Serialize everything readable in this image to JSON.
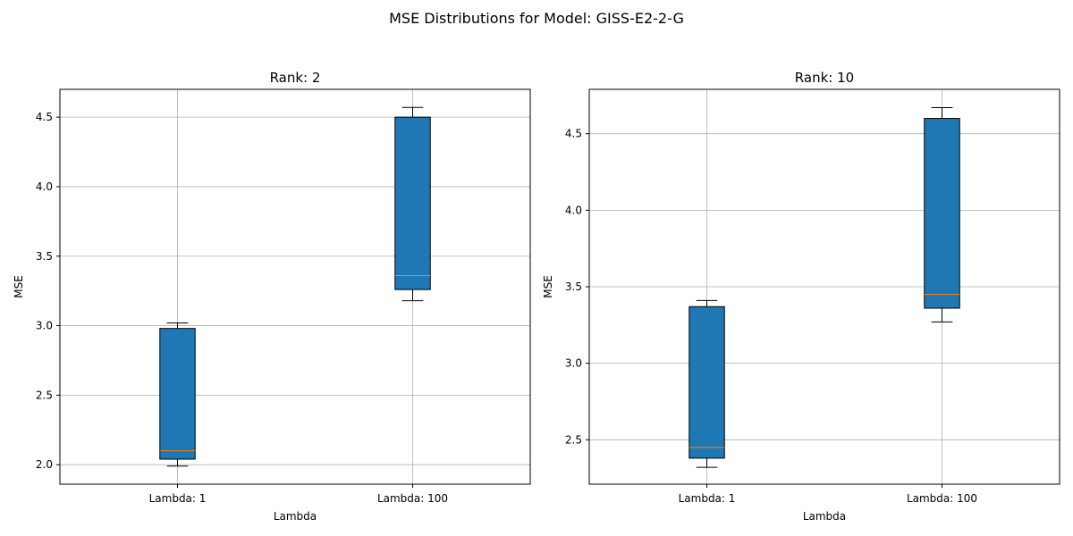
{
  "figure": {
    "suptitle": "MSE Distributions for Model: GISS-E2-2-G"
  },
  "style": {
    "box_fill": "#1f77b4",
    "median_color": "#ff7f0e",
    "grid_color": "#b0b0b0",
    "edge_color": "#000000"
  },
  "chart_data": [
    {
      "type": "box",
      "title": "Rank: 2",
      "xlabel": "Lambda",
      "ylabel": "MSE",
      "categories": [
        "Lambda: 1",
        "Lambda: 100"
      ],
      "ylim": [
        1.86,
        4.7
      ],
      "yticks": [
        2.0,
        2.5,
        3.0,
        3.5,
        4.0,
        4.5
      ],
      "ytick_labels": [
        "2.0",
        "2.5",
        "3.0",
        "3.5",
        "4.0",
        "4.5"
      ],
      "grid": true,
      "boxes": [
        {
          "whisker_low": 1.99,
          "q1": 2.04,
          "median": 2.1,
          "q3": 2.98,
          "whisker_high": 3.02
        },
        {
          "whisker_low": 3.18,
          "q1": 3.26,
          "median": 3.36,
          "q3": 4.5,
          "whisker_high": 4.57
        }
      ]
    },
    {
      "type": "box",
      "title": "Rank: 10",
      "xlabel": "Lambda",
      "ylabel": "MSE",
      "categories": [
        "Lambda: 1",
        "Lambda: 100"
      ],
      "ylim": [
        2.21,
        4.79
      ],
      "yticks": [
        2.5,
        3.0,
        3.5,
        4.0,
        4.5
      ],
      "ytick_labels": [
        "2.5",
        "3.0",
        "3.5",
        "4.0",
        "4.5"
      ],
      "grid": true,
      "boxes": [
        {
          "whisker_low": 2.32,
          "q1": 2.38,
          "median": 2.45,
          "q3": 3.37,
          "whisker_high": 3.41
        },
        {
          "whisker_low": 3.27,
          "q1": 3.36,
          "median": 3.45,
          "q3": 4.6,
          "whisker_high": 4.67
        }
      ]
    }
  ]
}
